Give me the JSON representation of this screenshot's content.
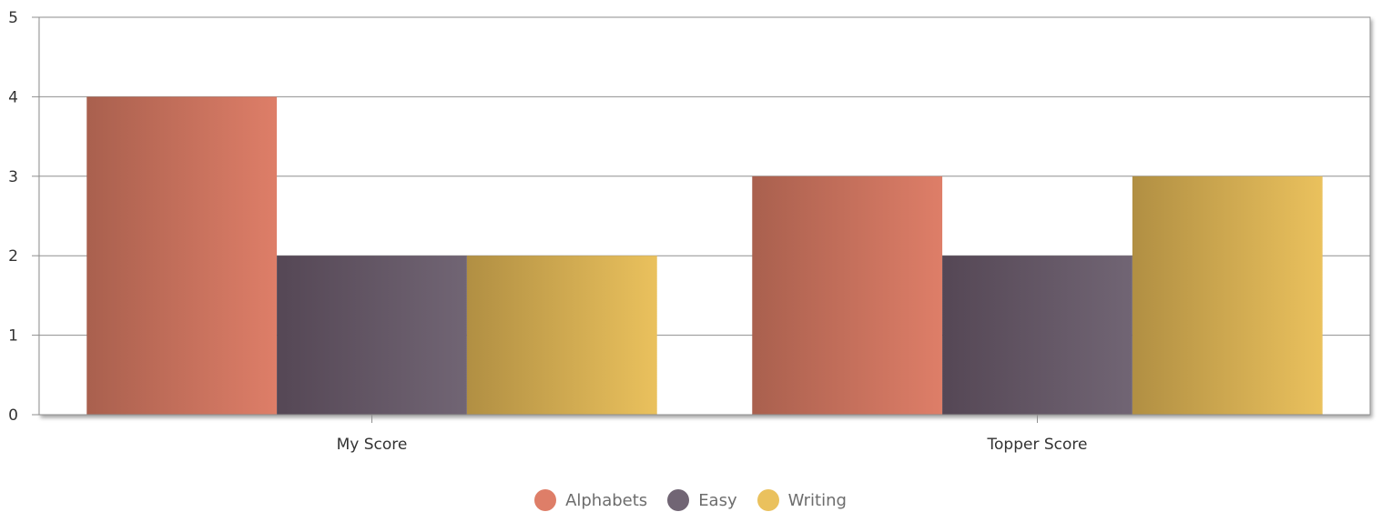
{
  "chart_data": {
    "type": "bar",
    "title": "",
    "xlabel": "",
    "ylabel": "",
    "categories": [
      "My Score",
      "Topper Score"
    ],
    "series": [
      {
        "name": "Alphabets",
        "values": [
          4,
          3
        ],
        "color": "#de7e68",
        "color_dark": "#a9604e"
      },
      {
        "name": "Easy",
        "values": [
          2,
          2
        ],
        "color": "#716574",
        "color_dark": "#554755"
      },
      {
        "name": "Writing",
        "values": [
          2,
          3
        ],
        "color": "#eac15d",
        "color_dark": "#b18f43"
      }
    ],
    "ylim": [
      0,
      5
    ],
    "yticks": [
      0,
      1,
      2,
      3,
      4,
      5
    ],
    "grid": true,
    "legend_position": "bottom-center"
  }
}
